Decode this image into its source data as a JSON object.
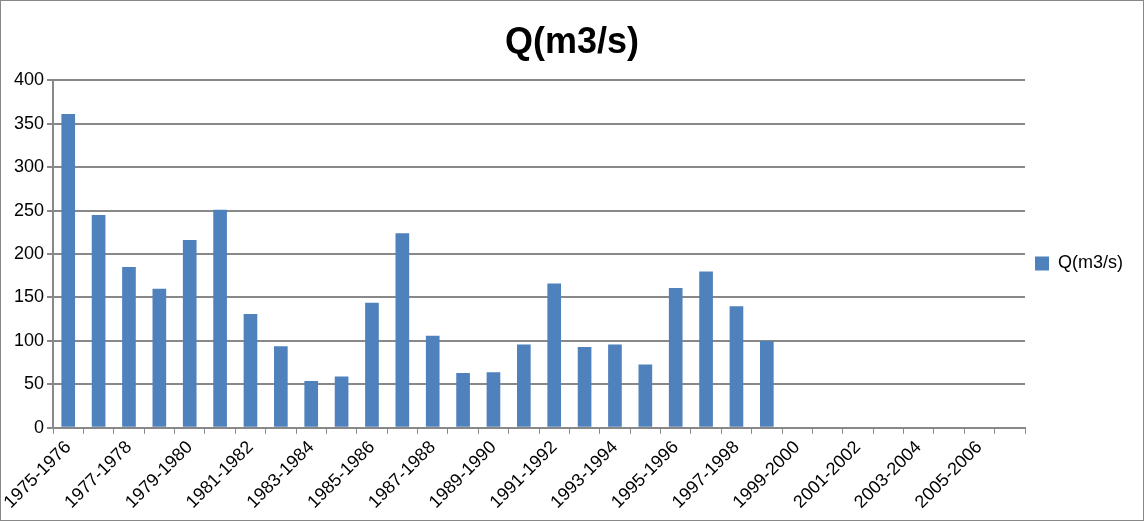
{
  "chart_data": {
    "type": "bar",
    "title": "Q(m3/s)",
    "categories": [
      "1975-1976",
      null,
      "1977-1978",
      null,
      "1979-1980",
      null,
      "1981-1982",
      null,
      "1983-1984",
      null,
      "1985-1986",
      null,
      "1987-1988",
      null,
      "1989-1990",
      null,
      "1991-1992",
      null,
      "1993-1994",
      null,
      "1995-1996",
      null,
      "1997-1998",
      null,
      "1999-2000",
      null,
      "2001-2002",
      null,
      "2003-2004",
      null,
      "2005-2006",
      null
    ],
    "series": [
      {
        "name": "Q(m3/s)",
        "color": "#4f81bd",
        "values": [
          361,
          245,
          185,
          160,
          216,
          251,
          131,
          94,
          54,
          59,
          144,
          224,
          106,
          63,
          64,
          96,
          166,
          93,
          96,
          73,
          161,
          180,
          140,
          100,
          null,
          null,
          null,
          null,
          null,
          null,
          null,
          null
        ]
      }
    ],
    "ylim": [
      0,
      400
    ],
    "yticks": [
      0,
      50,
      100,
      150,
      200,
      250,
      300,
      350,
      400
    ],
    "grid": "y",
    "legend": "right"
  }
}
